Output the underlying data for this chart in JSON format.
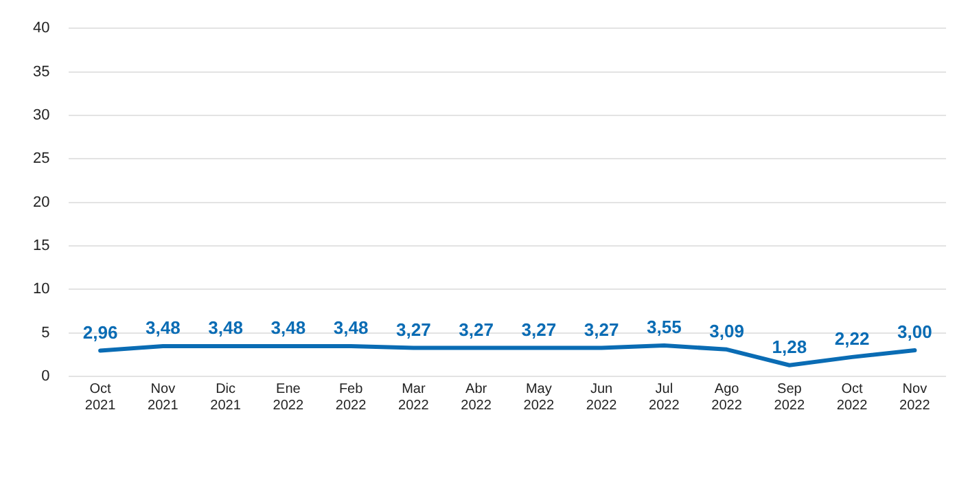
{
  "chart_data": {
    "type": "line",
    "categories": [
      "Oct 2021",
      "Nov 2021",
      "Dic 2021",
      "Ene 2022",
      "Feb 2022",
      "Mar 2022",
      "Abr 2022",
      "May 2022",
      "Jun 2022",
      "Jul 2022",
      "Ago 2022",
      "Sep 2022",
      "Oct 2022",
      "Nov 2022"
    ],
    "series": [
      {
        "color": "#0a6cb4",
        "values": [
          2.96,
          3.48,
          3.48,
          3.48,
          3.48,
          3.27,
          3.27,
          3.27,
          3.27,
          3.55,
          3.09,
          1.28,
          2.22,
          3.0
        ],
        "value_labels": [
          "2,96",
          "3,48",
          "3,48",
          "3,48",
          "3,48",
          "3,27",
          "3,27",
          "3,27",
          "3,27",
          "3,55",
          "3,09",
          "1,28",
          "2,22",
          "3,00"
        ]
      }
    ],
    "ylim": [
      0,
      40
    ],
    "yticks": [
      0,
      5,
      10,
      15,
      20,
      25,
      30,
      35,
      40
    ],
    "grid": "y",
    "legend": false,
    "marker": "none",
    "line_style": "solid"
  }
}
